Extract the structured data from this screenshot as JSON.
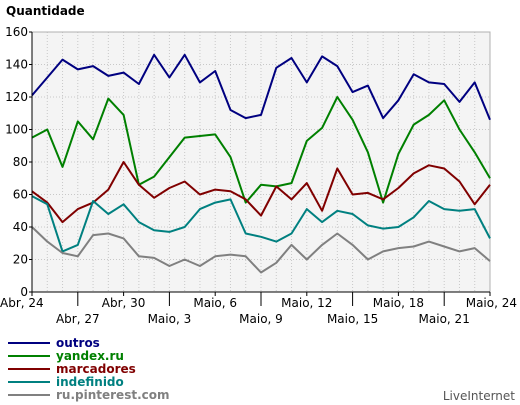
{
  "chart_data": {
    "type": "line",
    "title": "Quantidade",
    "ylim": [
      0,
      160
    ],
    "yticks": [
      0,
      20,
      40,
      60,
      80,
      100,
      120,
      140,
      160
    ],
    "grid": true,
    "legend_position": "bottom-left",
    "xlabels": [
      {
        "i": 0,
        "text": "Abr, 24",
        "row": 0
      },
      {
        "i": 3,
        "text": "Abr, 27",
        "row": 1
      },
      {
        "i": 6,
        "text": "Abr, 30",
        "row": 0
      },
      {
        "i": 9,
        "text": "Maio, 3",
        "row": 1
      },
      {
        "i": 12,
        "text": "Maio, 6",
        "row": 0
      },
      {
        "i": 15,
        "text": "Maio, 9",
        "row": 1
      },
      {
        "i": 18,
        "text": "Maio, 12",
        "row": 0
      },
      {
        "i": 21,
        "text": "Maio, 15",
        "row": 1
      },
      {
        "i": 24,
        "text": "Maio, 18",
        "row": 0
      },
      {
        "i": 27,
        "text": "Maio, 21",
        "row": 1
      },
      {
        "i": 30,
        "text": "Maio, 24",
        "row": 0
      }
    ],
    "series": [
      {
        "name": "outros",
        "color": "#000080",
        "values": [
          121,
          132,
          143,
          137,
          139,
          133,
          135,
          128,
          146,
          132,
          146,
          129,
          136,
          112,
          107,
          109,
          138,
          144,
          129,
          145,
          139,
          123,
          127,
          107,
          118,
          134,
          129,
          128,
          117,
          129,
          106
        ]
      },
      {
        "name": "yandex.ru",
        "color": "#008000",
        "values": [
          95,
          100,
          77,
          105,
          94,
          119,
          109,
          66,
          71,
          83,
          95,
          96,
          97,
          83,
          55,
          66,
          65,
          67,
          93,
          101,
          120,
          106,
          86,
          55,
          85,
          103,
          109,
          118,
          100,
          86,
          70
        ]
      },
      {
        "name": "marcadores",
        "color": "#800000",
        "values": [
          62,
          55,
          43,
          51,
          55,
          63,
          80,
          66,
          58,
          64,
          68,
          60,
          63,
          62,
          57,
          47,
          65,
          57,
          67,
          50,
          76,
          60,
          61,
          57,
          64,
          73,
          78,
          76,
          68,
          54,
          66
        ]
      },
      {
        "name": "indefinido",
        "color": "#008080",
        "values": [
          59,
          54,
          25,
          29,
          56,
          48,
          54,
          43,
          38,
          37,
          40,
          51,
          55,
          57,
          36,
          34,
          31,
          36,
          51,
          43,
          50,
          48,
          41,
          39,
          40,
          46,
          56,
          51,
          50,
          51,
          33
        ]
      },
      {
        "name": "ru.pinterest.com",
        "color": "#808080",
        "values": [
          40,
          31,
          24,
          22,
          35,
          36,
          33,
          22,
          21,
          16,
          20,
          16,
          22,
          23,
          22,
          12,
          18,
          29,
          20,
          29,
          36,
          29,
          20,
          25,
          27,
          28,
          31,
          28,
          25,
          27,
          19
        ]
      }
    ]
  },
  "credit": "LiveInternet"
}
